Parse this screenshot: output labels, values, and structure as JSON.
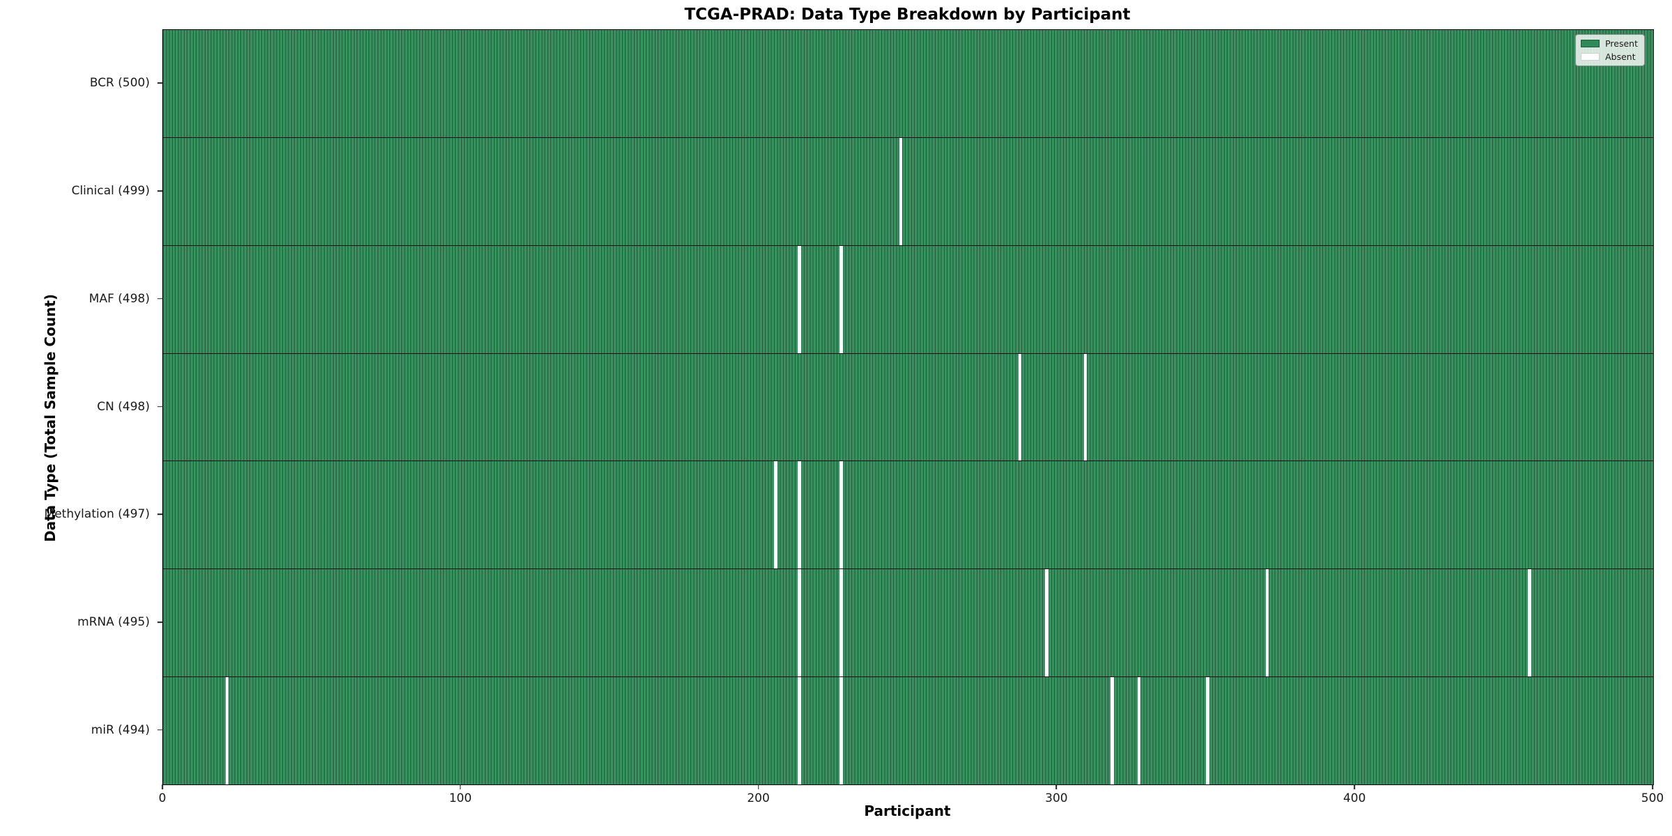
{
  "title": "TCGA-PRAD: Data Type Breakdown by Participant",
  "x_axis": {
    "label": "Participant",
    "ticks": [
      0,
      100,
      200,
      300,
      400,
      500
    ],
    "range": [
      0,
      500
    ]
  },
  "y_axis": {
    "label": "Data Type (Total Sample Count)"
  },
  "legend": {
    "present_label": "Present",
    "absent_label": "Absent"
  },
  "colors": {
    "present": "#2e8b57",
    "row_fill": "#37925f",
    "cell_edge": "rgba(0,0,0,0.38)",
    "absent": "#ffffff"
  },
  "chart_data": {
    "type": "heatmap",
    "title": "TCGA-PRAD: Data Type Breakdown by Participant",
    "xlabel": "Participant",
    "ylabel": "Data Type (Total Sample Count)",
    "x_range": [
      0,
      500
    ],
    "n_participants": 500,
    "legend": [
      "Present",
      "Absent"
    ],
    "legend_position": "upper right",
    "rows": [
      {
        "label": "BCR (500)",
        "data_type": "BCR",
        "present_count": 500,
        "absent_participants": []
      },
      {
        "label": "Clinical (499)",
        "data_type": "Clinical",
        "present_count": 499,
        "absent_participants": [
          247
        ]
      },
      {
        "label": "MAF (498)",
        "data_type": "MAF",
        "present_count": 498,
        "absent_participants": [
          213,
          227
        ]
      },
      {
        "label": "CN (498)",
        "data_type": "CN",
        "present_count": 498,
        "absent_participants": [
          287,
          309
        ]
      },
      {
        "label": "Methylation (497)",
        "data_type": "Methylation",
        "present_count": 497,
        "absent_participants": [
          205,
          213,
          227
        ]
      },
      {
        "label": "mRNA (495)",
        "data_type": "mRNA",
        "present_count": 495,
        "absent_participants": [
          213,
          227,
          296,
          370,
          458
        ]
      },
      {
        "label": "miR (494)",
        "data_type": "miR",
        "present_count": 494,
        "absent_participants": [
          21,
          213,
          227,
          318,
          327,
          350
        ]
      }
    ]
  }
}
